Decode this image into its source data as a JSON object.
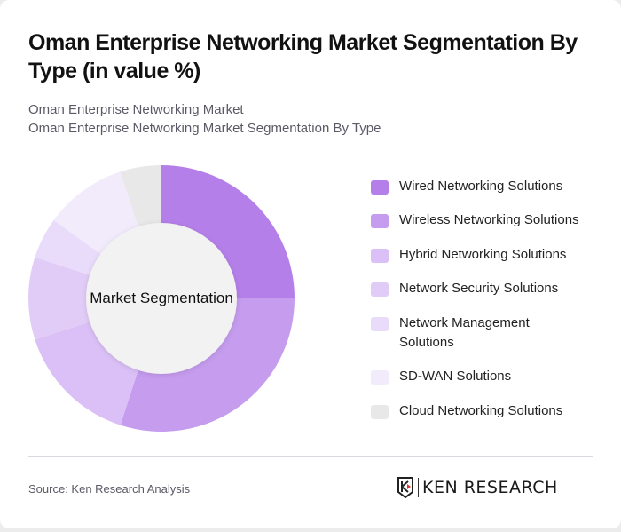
{
  "header": {
    "title": "Oman Enterprise Networking Market Segmentation By Type (in value %)",
    "subtitle_line1": "Oman Enterprise Networking Market",
    "subtitle_line2": "Oman Enterprise Networking Market Segmentation By Type"
  },
  "chart_data": {
    "type": "pie",
    "variant": "donut",
    "title": "Oman Enterprise Networking Market Segmentation By Type (in value %)",
    "center_label": "Market Segmentation",
    "categories": [
      "Wired Networking Solutions",
      "Wireless Networking Solutions",
      "Hybrid Networking Solutions",
      "Network Security Solutions",
      "Network Management Solutions",
      "SD-WAN Solutions",
      "Cloud Networking Solutions"
    ],
    "values": [
      25,
      30,
      15,
      10,
      5,
      10,
      5
    ],
    "colors": [
      "#b57fe9",
      "#c59cee",
      "#dac0f6",
      "#e1ccf7",
      "#e9dbfa",
      "#f2ebfc",
      "#e8e8e8"
    ],
    "legend_position": "right"
  },
  "legend": {
    "items": [
      {
        "label": "Wired Networking Solutions",
        "color": "#b57fe9"
      },
      {
        "label": "Wireless Networking Solutions",
        "color": "#c59cee"
      },
      {
        "label": "Hybrid Networking Solutions",
        "color": "#dac0f6"
      },
      {
        "label": "Network Security Solutions",
        "color": "#e1ccf7"
      },
      {
        "label": "Network Management Solutions",
        "color": "#e9dbfa"
      },
      {
        "label": "SD-WAN Solutions",
        "color": "#f2ebfc"
      },
      {
        "label": "Cloud Networking Solutions",
        "color": "#e8e8e8"
      }
    ]
  },
  "footer": {
    "source": "Source: Ken Research Analysis",
    "logo_text": "KEN RESEARCH"
  }
}
